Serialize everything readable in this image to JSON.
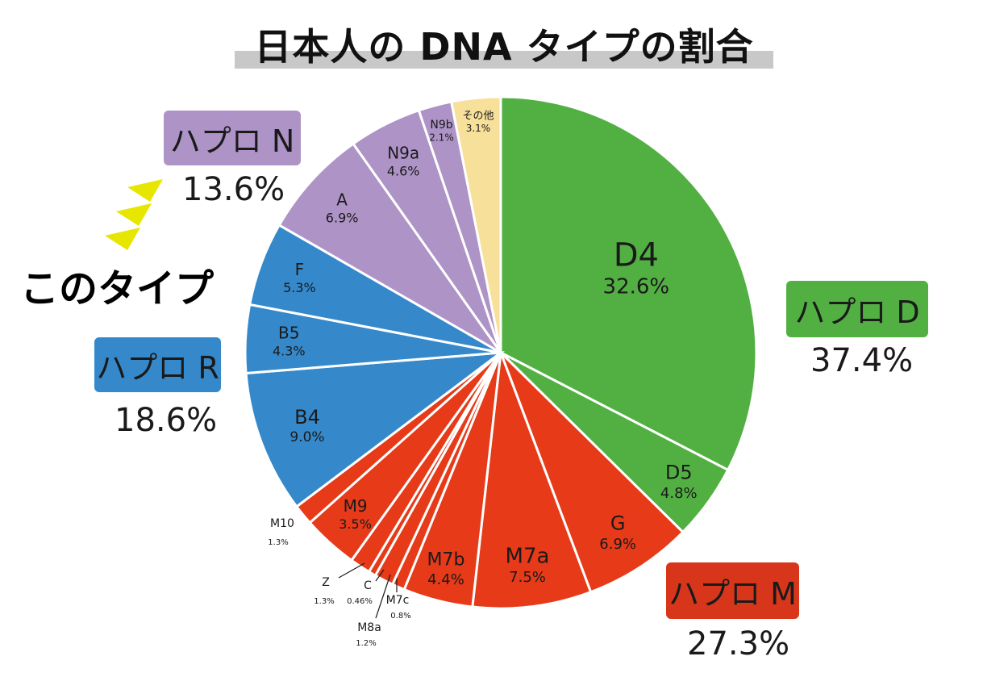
{
  "title": "日本人の DNA タイプの割合",
  "callout": "このタイプ",
  "colors": {
    "green": "#52b043",
    "red": "#e63a19",
    "blue": "#3589cb",
    "purple": "#ae93c7",
    "yellow": "#f7e09a",
    "callout_arrows": "#e6e600"
  },
  "groups": {
    "D": {
      "label": "ハプロ D",
      "percent": "37.4%",
      "color": "#52b043"
    },
    "M": {
      "label": "ハプロ M",
      "percent": "27.3%",
      "color": "#d8361a"
    },
    "R": {
      "label": "ハプロ R",
      "percent": "18.6%",
      "color": "#3589cb"
    },
    "N": {
      "label": "ハプロ N",
      "percent": "13.6%",
      "color": "#ae93c7"
    }
  },
  "chart_data": {
    "type": "pie",
    "title": "日本人の DNA タイプの割合",
    "slices": [
      {
        "label": "D4",
        "value": 32.6,
        "value_label": "32.6%",
        "group": "D",
        "color": "#52b043"
      },
      {
        "label": "D5",
        "value": 4.8,
        "value_label": "4.8%",
        "group": "D",
        "color": "#52b043"
      },
      {
        "label": "G",
        "value": 6.9,
        "value_label": "6.9%",
        "group": "M",
        "color": "#e63a19"
      },
      {
        "label": "M7a",
        "value": 7.5,
        "value_label": "7.5%",
        "group": "M",
        "color": "#e63a19"
      },
      {
        "label": "M7b",
        "value": 4.4,
        "value_label": "4.4%",
        "group": "M",
        "color": "#e63a19"
      },
      {
        "label": "M7c",
        "value": 0.8,
        "value_label": "0.8%",
        "group": "M",
        "color": "#e63a19"
      },
      {
        "label": "M8a",
        "value": 1.2,
        "value_label": "1.2%",
        "group": "M",
        "color": "#e63a19"
      },
      {
        "label": "C",
        "value": 0.46,
        "value_label": "0.46%",
        "group": "M",
        "color": "#e63a19"
      },
      {
        "label": "Z",
        "value": 1.3,
        "value_label": "1.3%",
        "group": "M",
        "color": "#e63a19"
      },
      {
        "label": "M9",
        "value": 3.5,
        "value_label": "3.5%",
        "group": "M",
        "color": "#e63a19"
      },
      {
        "label": "M10",
        "value": 1.3,
        "value_label": "1.3%",
        "group": "M",
        "color": "#e63a19"
      },
      {
        "label": "B4",
        "value": 9.0,
        "value_label": "9.0%",
        "group": "R",
        "color": "#3589cb"
      },
      {
        "label": "B5",
        "value": 4.3,
        "value_label": "4.3%",
        "group": "R",
        "color": "#3589cb"
      },
      {
        "label": "F",
        "value": 5.3,
        "value_label": "5.3%",
        "group": "R",
        "color": "#3589cb"
      },
      {
        "label": "A",
        "value": 6.9,
        "value_label": "6.9%",
        "group": "N",
        "color": "#ae93c7"
      },
      {
        "label": "N9a",
        "value": 4.6,
        "value_label": "4.6%",
        "group": "N",
        "color": "#ae93c7"
      },
      {
        "label": "N9b",
        "value": 2.1,
        "value_label": "2.1%",
        "group": "N",
        "color": "#ae93c7"
      },
      {
        "label": "その他",
        "value": 3.1,
        "value_label": "3.1%",
        "group": "other",
        "color": "#f7e09a"
      }
    ]
  }
}
